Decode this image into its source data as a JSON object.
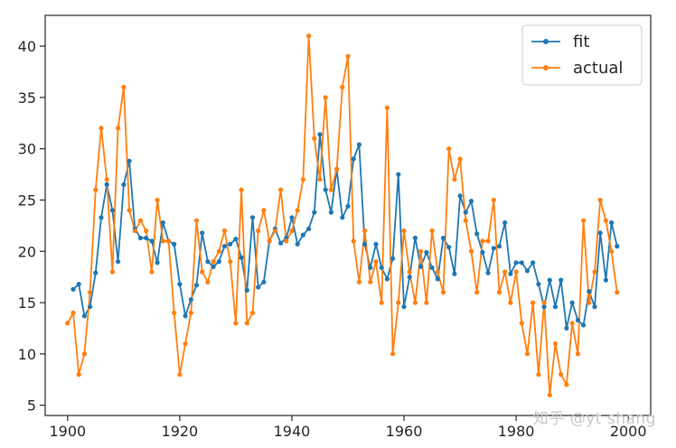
{
  "chart_data": {
    "type": "line",
    "title": "",
    "xlabel": "",
    "ylabel": "",
    "xlim": [
      1896,
      2004
    ],
    "ylim": [
      4,
      43
    ],
    "xticks": [
      1900,
      1920,
      1940,
      1960,
      1980,
      2000
    ],
    "yticks": [
      5,
      10,
      15,
      20,
      25,
      30,
      35,
      40
    ],
    "legend_position": "top-right",
    "x": [
      1900,
      1901,
      1902,
      1903,
      1904,
      1905,
      1906,
      1907,
      1908,
      1909,
      1910,
      1911,
      1912,
      1913,
      1914,
      1915,
      1916,
      1917,
      1918,
      1919,
      1920,
      1921,
      1922,
      1923,
      1924,
      1925,
      1926,
      1927,
      1928,
      1929,
      1930,
      1931,
      1932,
      1933,
      1934,
      1935,
      1936,
      1937,
      1938,
      1939,
      1940,
      1941,
      1942,
      1943,
      1944,
      1945,
      1946,
      1947,
      1948,
      1949,
      1950,
      1951,
      1952,
      1953,
      1954,
      1955,
      1956,
      1957,
      1958,
      1959,
      1960,
      1961,
      1962,
      1963,
      1964,
      1965,
      1966,
      1967,
      1968,
      1969,
      1970,
      1971,
      1972,
      1973,
      1974,
      1975,
      1976,
      1977,
      1978,
      1979,
      1980,
      1981,
      1982,
      1983,
      1984,
      1985,
      1986,
      1987,
      1988,
      1989,
      1990,
      1991,
      1992,
      1993,
      1994,
      1995,
      1996,
      1997,
      1998
    ],
    "series": [
      {
        "name": "fit",
        "color": "#1f77b4",
        "values": [
          null,
          16.3,
          16.8,
          13.7,
          14.6,
          17.9,
          23.3,
          26.5,
          24.0,
          19.0,
          26.5,
          28.8,
          22.2,
          21.3,
          21.3,
          21.0,
          18.9,
          22.8,
          21.0,
          20.7,
          16.8,
          13.7,
          15.3,
          16.7,
          21.8,
          19.0,
          18.5,
          19.0,
          20.5,
          20.7,
          21.2,
          19.4,
          16.2,
          23.3,
          16.5,
          17.0,
          21.0,
          22.2,
          20.8,
          21.3,
          23.3,
          20.7,
          21.6,
          22.2,
          23.8,
          31.4,
          26.0,
          23.8,
          28.0,
          23.3,
          24.4,
          29.0,
          30.4,
          20.7,
          18.4,
          20.7,
          18.4,
          17.3,
          19.3,
          27.5,
          14.6,
          17.5,
          21.3,
          18.5,
          19.9,
          18.4,
          17.3,
          21.3,
          20.4,
          17.8,
          25.4,
          23.8,
          24.9,
          21.7,
          19.9,
          17.9,
          20.3,
          20.5,
          22.8,
          17.8,
          18.9,
          18.9,
          18.1,
          18.9,
          16.8,
          14.6,
          17.2,
          14.6,
          17.2,
          12.5,
          15.0,
          13.3,
          12.8,
          16.1,
          14.6,
          21.8,
          17.2,
          22.8,
          20.5
        ]
      },
      {
        "name": "actual",
        "color": "#ff7f0e",
        "values": [
          13.0,
          14.0,
          8.0,
          10.0,
          16.0,
          26.0,
          32.0,
          27.0,
          18.0,
          32.0,
          36.0,
          24.0,
          22.0,
          23.0,
          22.0,
          18.0,
          25.0,
          21.0,
          21.0,
          14.0,
          8.0,
          11.0,
          14.0,
          23.0,
          18.0,
          17.0,
          19.0,
          20.0,
          22.0,
          19.0,
          13.0,
          26.0,
          13.0,
          14.0,
          22.0,
          24.0,
          21.0,
          22.0,
          26.0,
          21.0,
          22.0,
          24.0,
          27.0,
          41.0,
          31.0,
          27.0,
          35.0,
          26.0,
          28.0,
          36.0,
          39.0,
          21.0,
          17.0,
          22.0,
          17.0,
          19.0,
          15.0,
          34.0,
          10.0,
          15.0,
          22.0,
          18.0,
          15.0,
          20.0,
          15.0,
          22.0,
          18.0,
          16.0,
          30.0,
          27.0,
          29.0,
          23.0,
          20.0,
          16.0,
          21.0,
          21.0,
          25.0,
          16.0,
          18.0,
          15.0,
          18.0,
          13.0,
          10.0,
          15.0,
          8.0,
          15.0,
          6.0,
          11.0,
          8.0,
          7.0,
          13.0,
          10.0,
          23.0,
          15.0,
          18.0,
          25.0,
          23.0,
          20.0,
          16.0
        ]
      }
    ]
  },
  "watermark": "知乎 @yt shang"
}
